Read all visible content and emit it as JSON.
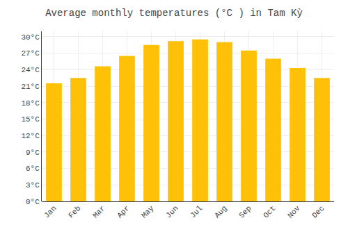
{
  "chart_data": {
    "type": "bar",
    "title": "Average monthly temperatures (°C ) in Tam Kỳ",
    "categories": [
      "Jan",
      "Feb",
      "Mar",
      "Apr",
      "May",
      "Jun",
      "Jul",
      "Aug",
      "Sep",
      "Oct",
      "Nov",
      "Dec"
    ],
    "values": [
      21.5,
      22.5,
      24.6,
      26.5,
      28.5,
      29.2,
      29.5,
      29.0,
      27.5,
      26.0,
      24.3,
      22.5
    ],
    "color": "#FFC107",
    "ylim": [
      0,
      31
    ],
    "yticks": [
      {
        "value": 0,
        "label": "0°C"
      },
      {
        "value": 3,
        "label": "3°C"
      },
      {
        "value": 6,
        "label": "6°C"
      },
      {
        "value": 9,
        "label": "9°C"
      },
      {
        "value": 12,
        "label": "12°C"
      },
      {
        "value": 15,
        "label": "15°C"
      },
      {
        "value": 18,
        "label": "18°C"
      },
      {
        "value": 21,
        "label": "21°C"
      },
      {
        "value": 24,
        "label": "24°C"
      },
      {
        "value": 27,
        "label": "27°C"
      },
      {
        "value": 30,
        "label": "30°C"
      }
    ],
    "grid": true
  }
}
